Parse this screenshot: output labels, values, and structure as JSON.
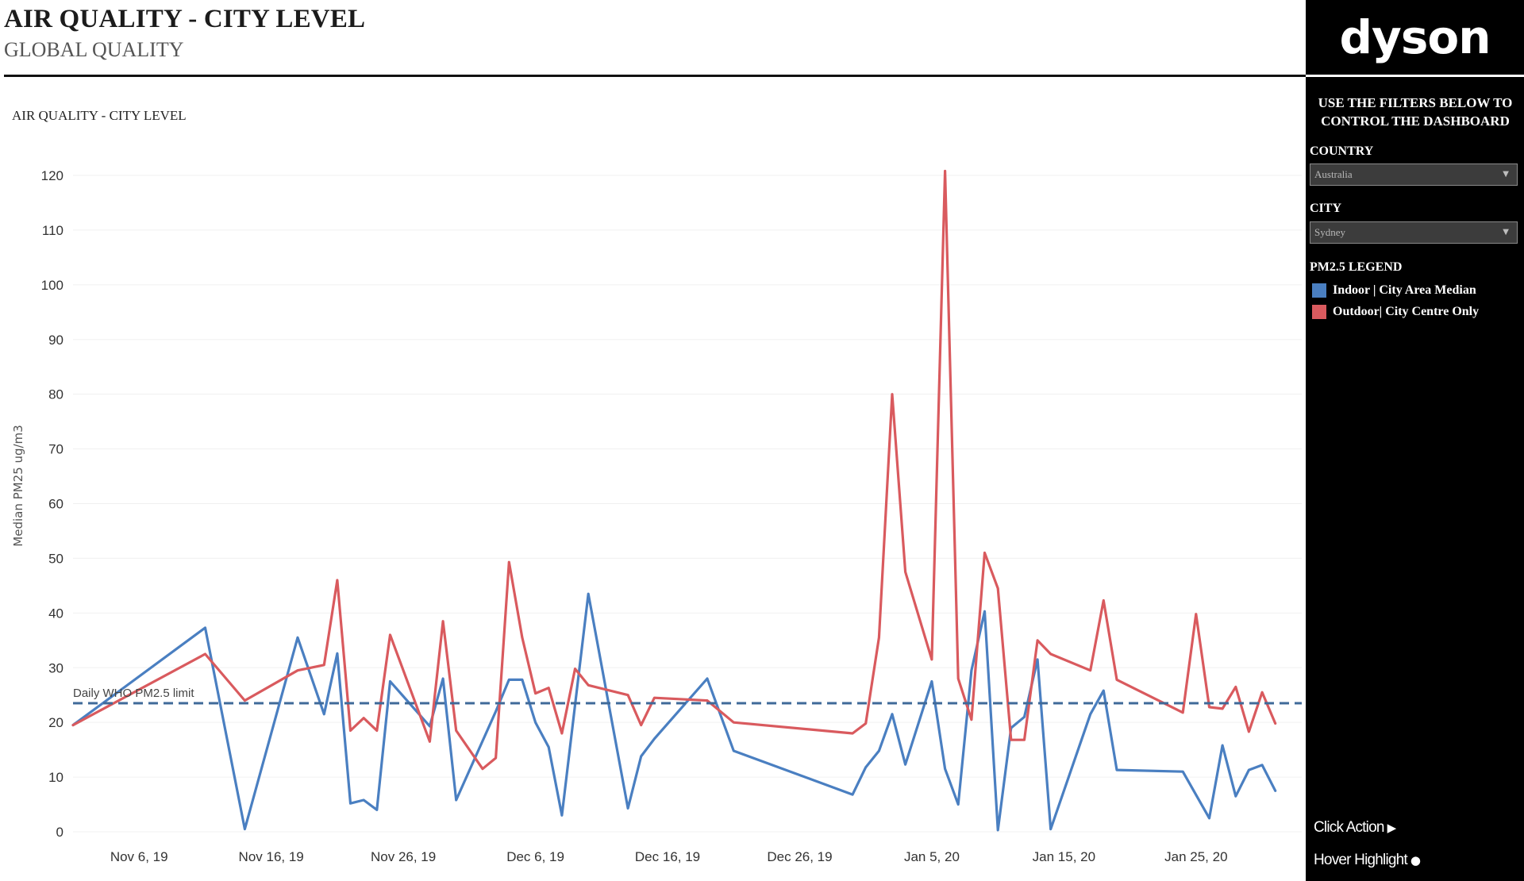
{
  "header": {
    "title": "AIR QUALITY - CITY LEVEL",
    "subtitle": "GLOBAL QUALITY"
  },
  "chart_title": "AIR QUALITY - CITY LEVEL",
  "sidebar": {
    "logo": "dyson",
    "filters_note": "USE THE FILTERS BELOW TO CONTROL THE DASHBOARD",
    "country": {
      "label": "COUNTRY",
      "value": "Australia"
    },
    "city": {
      "label": "CITY",
      "value": "Sydney"
    },
    "legend_title": "PM2.5 LEGEND",
    "legend": [
      {
        "label": "Indoor | City Area Median",
        "color": "#4a7fc1"
      },
      {
        "label": "Outdoor| City Centre Only",
        "color": "#d95a5e"
      }
    ],
    "click_action": "Click Action",
    "hover_highlight": "Hover Highlight"
  },
  "chart_data": {
    "type": "line",
    "ylabel": "Median PM25 ug/m3",
    "ylim": [
      0,
      125
    ],
    "yticks": [
      0,
      10,
      20,
      30,
      40,
      50,
      60,
      70,
      80,
      90,
      100,
      110,
      120
    ],
    "x_range": [
      "2019-11-01",
      "2020-02-02"
    ],
    "x_ticks": [
      {
        "date": "2019-11-06",
        "label": "Nov 6, 19"
      },
      {
        "date": "2019-11-16",
        "label": "Nov 16, 19"
      },
      {
        "date": "2019-11-26",
        "label": "Nov 26, 19"
      },
      {
        "date": "2019-12-06",
        "label": "Dec 6, 19"
      },
      {
        "date": "2019-12-16",
        "label": "Dec 16, 19"
      },
      {
        "date": "2019-12-26",
        "label": "Dec 26, 19"
      },
      {
        "date": "2020-01-05",
        "label": "Jan 5, 20"
      },
      {
        "date": "2020-01-15",
        "label": "Jan 15, 20"
      },
      {
        "date": "2020-01-25",
        "label": "Jan 25, 20"
      }
    ],
    "reference_line": {
      "value": 23.5,
      "label": "Daily WHO PM2.5 limit"
    },
    "grid": true,
    "series": [
      {
        "name": "Indoor | City Area Median",
        "color": "#4a7fc1",
        "points": [
          [
            "2019-11-01",
            19.5
          ],
          [
            "2019-11-11",
            37.3
          ],
          [
            "2019-11-14",
            0.5
          ],
          [
            "2019-11-18",
            35.5
          ],
          [
            "2019-11-20",
            21.5
          ],
          [
            "2019-11-21",
            32.6
          ],
          [
            "2019-11-22",
            5.2
          ],
          [
            "2019-11-23",
            5.8
          ],
          [
            "2019-11-24",
            4.0
          ],
          [
            "2019-11-25",
            27.5
          ],
          [
            "2019-11-28",
            19.3
          ],
          [
            "2019-11-29",
            28.0
          ],
          [
            "2019-11-30",
            5.8
          ],
          [
            "2019-12-03",
            22.0
          ],
          [
            "2019-12-04",
            27.8
          ],
          [
            "2019-12-05",
            27.8
          ],
          [
            "2019-12-06",
            20.0
          ],
          [
            "2019-12-07",
            15.5
          ],
          [
            "2019-12-08",
            3.0
          ],
          [
            "2019-12-10",
            43.5
          ],
          [
            "2019-12-13",
            4.3
          ],
          [
            "2019-12-14",
            13.8
          ],
          [
            "2019-12-15",
            17.0
          ],
          [
            "2019-12-19",
            28.0
          ],
          [
            "2019-12-21",
            14.8
          ],
          [
            "2019-12-30",
            6.8
          ],
          [
            "2019-12-31",
            11.8
          ],
          [
            "2020-01-01",
            14.8
          ],
          [
            "2020-01-02",
            21.5
          ],
          [
            "2020-01-03",
            12.3
          ],
          [
            "2020-01-05",
            27.5
          ],
          [
            "2020-01-06",
            11.5
          ],
          [
            "2020-01-07",
            5.0
          ],
          [
            "2020-01-08",
            29.5
          ],
          [
            "2020-01-09",
            40.3
          ],
          [
            "2020-01-10",
            0.3
          ],
          [
            "2020-01-11",
            19.0
          ],
          [
            "2020-01-12",
            21.0
          ],
          [
            "2020-01-13",
            31.5
          ],
          [
            "2020-01-14",
            0.5
          ],
          [
            "2020-01-17",
            21.5
          ],
          [
            "2020-01-18",
            25.8
          ],
          [
            "2020-01-19",
            11.3
          ],
          [
            "2020-01-24",
            11.0
          ],
          [
            "2020-01-26",
            2.5
          ],
          [
            "2020-01-27",
            15.8
          ],
          [
            "2020-01-28",
            6.5
          ],
          [
            "2020-01-29",
            11.3
          ],
          [
            "2020-01-30",
            12.2
          ],
          [
            "2020-01-31",
            7.5
          ]
        ]
      },
      {
        "name": "Outdoor| City Centre Only",
        "color": "#d95a5e",
        "points": [
          [
            "2019-11-01",
            19.5
          ],
          [
            "2019-11-11",
            32.5
          ],
          [
            "2019-11-14",
            24.0
          ],
          [
            "2019-11-18",
            29.5
          ],
          [
            "2019-11-20",
            30.5
          ],
          [
            "2019-11-21",
            46.0
          ],
          [
            "2019-11-22",
            18.5
          ],
          [
            "2019-11-23",
            20.8
          ],
          [
            "2019-11-24",
            18.5
          ],
          [
            "2019-11-25",
            36.0
          ],
          [
            "2019-11-28",
            16.5
          ],
          [
            "2019-11-29",
            38.5
          ],
          [
            "2019-11-30",
            18.5
          ],
          [
            "2019-12-02",
            11.5
          ],
          [
            "2019-12-03",
            13.5
          ],
          [
            "2019-12-04",
            49.3
          ],
          [
            "2019-12-05",
            35.5
          ],
          [
            "2019-12-06",
            25.3
          ],
          [
            "2019-12-07",
            26.3
          ],
          [
            "2019-12-08",
            18.0
          ],
          [
            "2019-12-09",
            29.8
          ],
          [
            "2019-12-10",
            26.8
          ],
          [
            "2019-12-13",
            25.0
          ],
          [
            "2019-12-14",
            19.5
          ],
          [
            "2019-12-15",
            24.5
          ],
          [
            "2019-12-19",
            24.0
          ],
          [
            "2019-12-21",
            20.0
          ],
          [
            "2019-12-30",
            18.0
          ],
          [
            "2019-12-31",
            19.8
          ],
          [
            "2020-01-01",
            35.5
          ],
          [
            "2020-01-02",
            80.0
          ],
          [
            "2020-01-03",
            47.5
          ],
          [
            "2020-01-05",
            31.5
          ],
          [
            "2020-01-06",
            120.8
          ],
          [
            "2020-01-07",
            28.0
          ],
          [
            "2020-01-08",
            20.5
          ],
          [
            "2020-01-09",
            51.0
          ],
          [
            "2020-01-10",
            44.5
          ],
          [
            "2020-01-11",
            16.8
          ],
          [
            "2020-01-12",
            16.8
          ],
          [
            "2020-01-13",
            35.0
          ],
          [
            "2020-01-14",
            32.5
          ],
          [
            "2020-01-17",
            29.5
          ],
          [
            "2020-01-18",
            42.3
          ],
          [
            "2020-01-19",
            27.8
          ],
          [
            "2020-01-24",
            21.8
          ],
          [
            "2020-01-25",
            39.8
          ],
          [
            "2020-01-26",
            22.8
          ],
          [
            "2020-01-27",
            22.5
          ],
          [
            "2020-01-28",
            26.5
          ],
          [
            "2020-01-29",
            18.3
          ],
          [
            "2020-01-30",
            25.5
          ],
          [
            "2020-01-31",
            19.8
          ]
        ]
      }
    ]
  }
}
